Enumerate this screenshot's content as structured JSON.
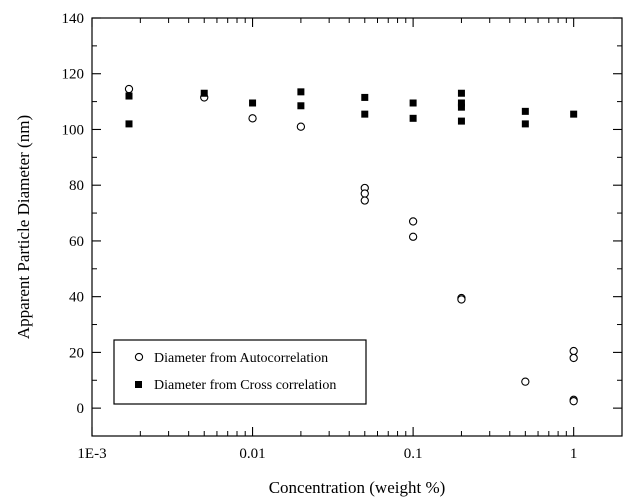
{
  "chart_data": {
    "type": "scatter",
    "xlabel": "Concentration (weight %)",
    "ylabel": "Apparent Particle Diameter (nm)",
    "xscale": "log",
    "xlim": [
      0.001,
      2
    ],
    "ylim": [
      -10,
      140
    ],
    "x_ticks": [
      {
        "value": 0.001,
        "label": "1E-3"
      },
      {
        "value": 0.01,
        "label": "0.01"
      },
      {
        "value": 0.1,
        "label": "0.1"
      },
      {
        "value": 1,
        "label": "1"
      }
    ],
    "y_ticks": [
      {
        "value": 0,
        "label": "0"
      },
      {
        "value": 20,
        "label": "20"
      },
      {
        "value": 40,
        "label": "40"
      },
      {
        "value": 60,
        "label": "60"
      },
      {
        "value": 80,
        "label": "80"
      },
      {
        "value": 100,
        "label": "100"
      },
      {
        "value": 120,
        "label": "120"
      },
      {
        "value": 140,
        "label": "140"
      }
    ],
    "legend_position": "bottom-left",
    "grid": false,
    "series": [
      {
        "name": "Diameter from Autocorrelation",
        "marker": "open-circle",
        "points": [
          {
            "x": 0.0017,
            "y": 114.5
          },
          {
            "x": 0.005,
            "y": 111.5
          },
          {
            "x": 0.01,
            "y": 104
          },
          {
            "x": 0.02,
            "y": 101
          },
          {
            "x": 0.05,
            "y": 79
          },
          {
            "x": 0.05,
            "y": 77
          },
          {
            "x": 0.05,
            "y": 74.5
          },
          {
            "x": 0.1,
            "y": 67
          },
          {
            "x": 0.1,
            "y": 61.5
          },
          {
            "x": 0.2,
            "y": 39.5
          },
          {
            "x": 0.2,
            "y": 39
          },
          {
            "x": 0.5,
            "y": 9.5
          },
          {
            "x": 1,
            "y": 20.5
          },
          {
            "x": 1,
            "y": 18
          },
          {
            "x": 1,
            "y": 3
          },
          {
            "x": 1,
            "y": 2.5
          }
        ]
      },
      {
        "name": "Diameter from Cross correlation",
        "marker": "filled-square",
        "points": [
          {
            "x": 0.0017,
            "y": 112
          },
          {
            "x": 0.0017,
            "y": 102
          },
          {
            "x": 0.005,
            "y": 113
          },
          {
            "x": 0.01,
            "y": 109.5
          },
          {
            "x": 0.02,
            "y": 113.5
          },
          {
            "x": 0.02,
            "y": 108.5
          },
          {
            "x": 0.05,
            "y": 111.5
          },
          {
            "x": 0.05,
            "y": 105.5
          },
          {
            "x": 0.1,
            "y": 109.5
          },
          {
            "x": 0.1,
            "y": 104
          },
          {
            "x": 0.2,
            "y": 113
          },
          {
            "x": 0.2,
            "y": 109.5
          },
          {
            "x": 0.2,
            "y": 108
          },
          {
            "x": 0.2,
            "y": 103
          },
          {
            "x": 0.5,
            "y": 106.5
          },
          {
            "x": 0.5,
            "y": 102
          },
          {
            "x": 1,
            "y": 105.5
          }
        ]
      }
    ]
  }
}
